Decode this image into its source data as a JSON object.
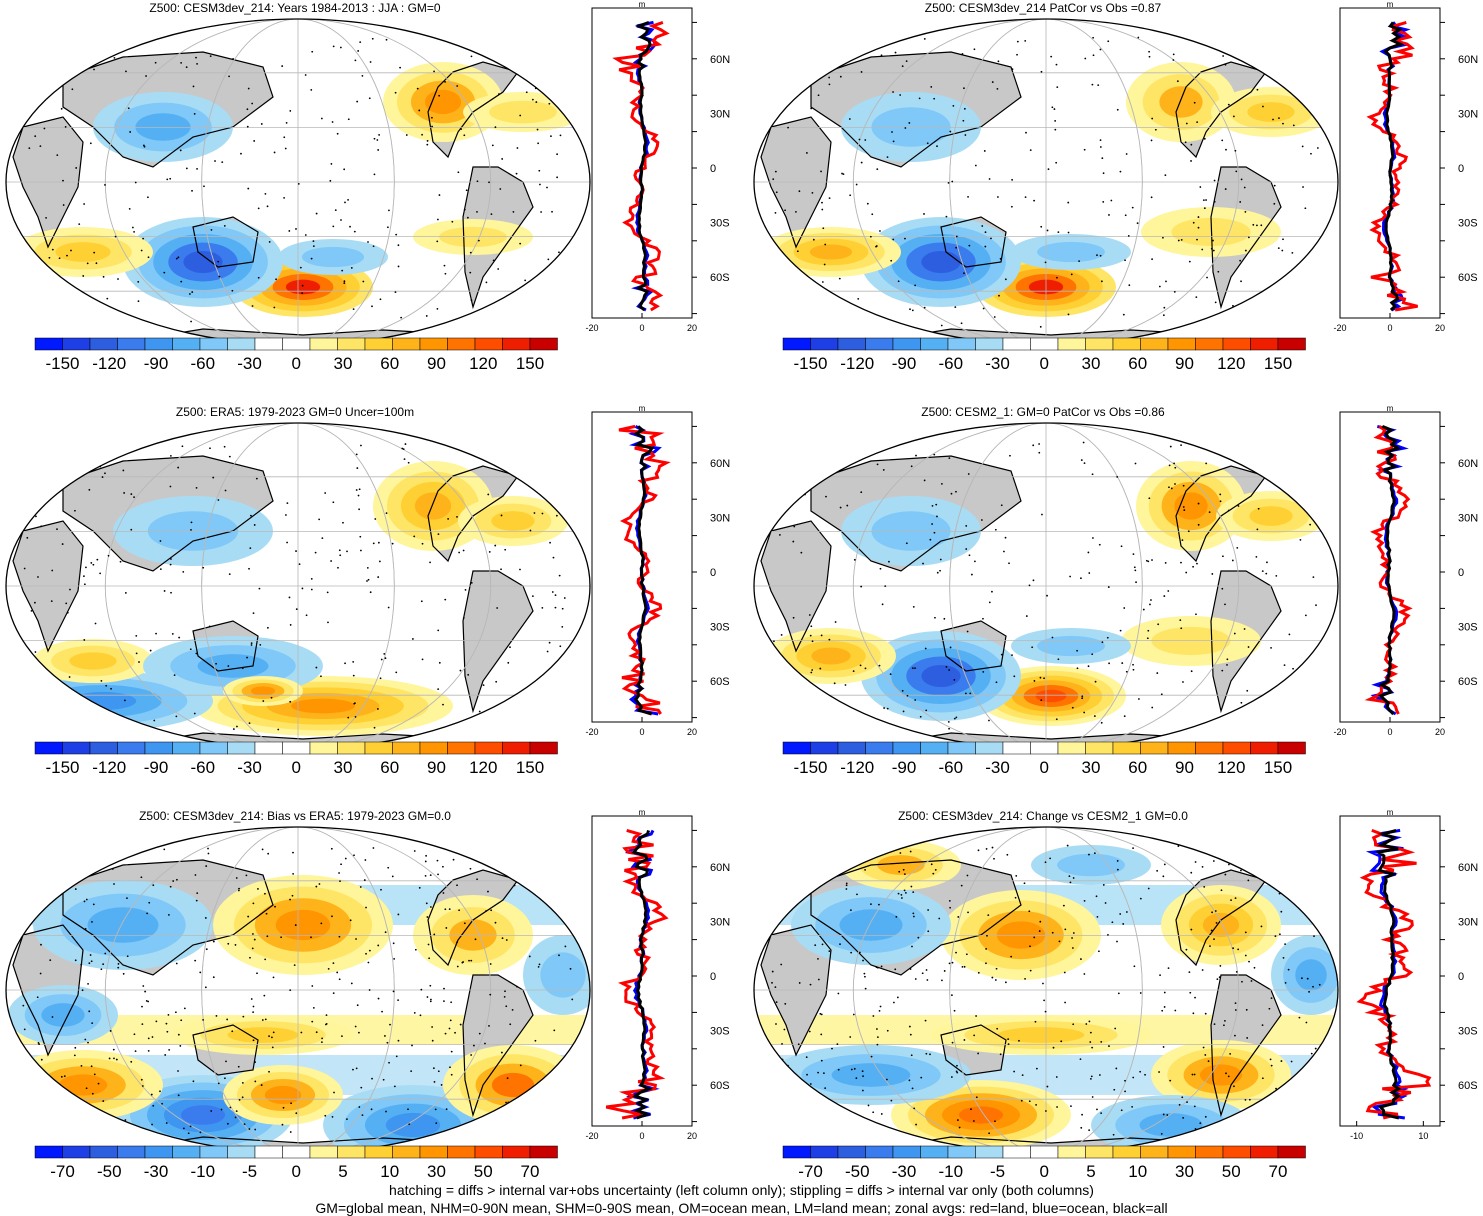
{
  "panels": [
    {
      "title": "Z500: CESM3dev_214: Years 1984-2013 : JJA : GM=0",
      "colorbar_labels": [
        "-150",
        "-120",
        "-90",
        "-60",
        "-30",
        "0",
        "30",
        "60",
        "90",
        "120",
        "150"
      ],
      "profile_ticks": [
        "-20",
        "0",
        "20"
      ],
      "profile_unit": "m",
      "palette": "large"
    },
    {
      "title": "Z500: CESM3dev_214 PatCor vs Obs =0.87",
      "colorbar_labels": [
        "-150",
        "-120",
        "-90",
        "-60",
        "-30",
        "0",
        "30",
        "60",
        "90",
        "120",
        "150"
      ],
      "profile_ticks": [
        "-20",
        "0",
        "20"
      ],
      "profile_unit": "m",
      "palette": "large"
    },
    {
      "title": "Z500: ERA5: 1979-2023 GM=0 Uncer=100m",
      "colorbar_labels": [
        "-150",
        "-120",
        "-90",
        "-60",
        "-30",
        "0",
        "30",
        "60",
        "90",
        "120",
        "150"
      ],
      "profile_ticks": [
        "-20",
        "0",
        "20"
      ],
      "profile_unit": "m",
      "palette": "large"
    },
    {
      "title": "Z500: CESM2_1: GM=0 PatCor vs Obs =0.86",
      "colorbar_labels": [
        "-150",
        "-120",
        "-90",
        "-60",
        "-30",
        "0",
        "30",
        "60",
        "90",
        "120",
        "150"
      ],
      "profile_ticks": [
        "-20",
        "0",
        "20"
      ],
      "profile_unit": "m",
      "palette": "large"
    },
    {
      "title": "Z500: CESM3dev_214: Bias vs ERA5: 1979-2023 GM=0.0",
      "colorbar_labels": [
        "-70",
        "-50",
        "-30",
        "-10",
        "-5",
        "0",
        "5",
        "10",
        "30",
        "50",
        "70"
      ],
      "profile_ticks": [
        "-20",
        "0",
        "20"
      ],
      "profile_unit": "m",
      "palette": "small"
    },
    {
      "title": "Z500: CESM3dev_214: Change vs CESM2_1 GM=0.0",
      "colorbar_labels": [
        "-70",
        "-50",
        "-30",
        "-10",
        "-5",
        "0",
        "5",
        "10",
        "30",
        "50",
        "70"
      ],
      "profile_ticks": [
        "-10",
        "10"
      ],
      "profile_unit": "m",
      "palette": "small"
    }
  ],
  "lat_labels": [
    "60N",
    "30N",
    "0",
    "30S",
    "60S"
  ],
  "footer": {
    "line1": "hatching = diffs > internal var+obs uncertainty (left column only); stippling = diffs > internal var only (both columns)",
    "line2": "GM=global mean, NHM=0-90N mean, SHM=0-90S mean, OM=ocean mean, LM=land mean; zonal avgs: red=land, blue=ocean, black=all"
  },
  "colors": {
    "colorbar": [
      "#0019ff",
      "#1f3fe6",
      "#2e5ee0",
      "#3a7bee",
      "#3f96f0",
      "#55b0f3",
      "#7fc8f8",
      "#a8dcf5",
      "#ffffff",
      "#ffffff",
      "#fff59a",
      "#ffe566",
      "#ffd033",
      "#ffb31a",
      "#ff9500",
      "#ff7300",
      "#ff4d00",
      "#f01e00",
      "#c80000"
    ],
    "land": "#c8c8c8",
    "land_series": "#ff0000",
    "ocean_series": "#0000ff",
    "all_series": "#000000"
  },
  "chart_data": [
    {
      "type": "heatmap",
      "title": "Z500: CESM3dev_214: Years 1984-2013 : JJA : GM=0",
      "colorbar_levels": [
        -150,
        -120,
        -90,
        -60,
        -30,
        0,
        30,
        60,
        90,
        120,
        150
      ],
      "features": [
        {
          "lon": 140,
          "lat": -55,
          "value": 150
        },
        {
          "lon": 90,
          "lat": -50,
          "value": -110
        },
        {
          "lon": -100,
          "lat": 62,
          "value": 60
        },
        {
          "lon": 60,
          "lat": 40,
          "value": -50
        },
        {
          "lon": 30,
          "lat": -38,
          "value": 50
        },
        {
          "lon": -30,
          "lat": 40,
          "value": 30
        }
      ],
      "zonal_profile": {
        "xlim": [
          -20,
          20
        ],
        "unit": "m"
      }
    },
    {
      "type": "heatmap",
      "title": "Z500: CESM3dev_214 PatCor vs Obs =0.87",
      "colorbar_levels": [
        -150,
        -120,
        -90,
        -60,
        -30,
        0,
        30,
        60,
        90,
        120,
        150
      ],
      "pattern_correlation": 0.87,
      "features": [
        {
          "lon": 140,
          "lat": -55,
          "value": 140
        },
        {
          "lon": 90,
          "lat": -50,
          "value": -100
        },
        {
          "lon": -100,
          "lat": 62,
          "value": 50
        },
        {
          "lon": 20,
          "lat": -38,
          "value": 60
        }
      ],
      "zonal_profile": {
        "xlim": [
          -20,
          20
        ],
        "unit": "m"
      }
    },
    {
      "type": "heatmap",
      "title": "Z500: ERA5: 1979-2023 GM=0 Uncer=100m",
      "colorbar_levels": [
        -150,
        -120,
        -90,
        -60,
        -30,
        0,
        30,
        60,
        90,
        120,
        150
      ],
      "uncertainty_m": 100,
      "features": [
        {
          "lon": -150,
          "lat": -50,
          "value": 60
        },
        {
          "lon": 60,
          "lat": -50,
          "value": -90
        },
        {
          "lon": -100,
          "lat": 55,
          "value": 50
        },
        {
          "lon": 50,
          "lat": -30,
          "value": 50
        }
      ],
      "zonal_profile": {
        "xlim": [
          -20,
          20
        ],
        "unit": "m"
      }
    },
    {
      "type": "heatmap",
      "title": "Z500: CESM2_1: GM=0 PatCor vs Obs =0.86",
      "colorbar_levels": [
        -150,
        -120,
        -90,
        -60,
        -30,
        0,
        30,
        60,
        90,
        120,
        150
      ],
      "pattern_correlation": 0.86,
      "features": [
        {
          "lon": 140,
          "lat": -55,
          "value": 120
        },
        {
          "lon": 90,
          "lat": -55,
          "value": -120
        },
        {
          "lon": -100,
          "lat": 60,
          "value": 70
        },
        {
          "lon": 20,
          "lat": -38,
          "value": 50
        }
      ],
      "zonal_profile": {
        "xlim": [
          -20,
          20
        ],
        "unit": "m"
      }
    },
    {
      "type": "heatmap",
      "title": "Z500: CESM3dev_214: Bias vs ERA5: 1979-2023 GM=0.0",
      "colorbar_levels": [
        -70,
        -50,
        -30,
        -10,
        -5,
        0,
        5,
        10,
        30,
        50,
        70
      ],
      "features": [
        {
          "lon": 100,
          "lat": -50,
          "value": -60
        },
        {
          "lon": -150,
          "lat": -50,
          "value": -60
        },
        {
          "lon": 30,
          "lat": -45,
          "value": 40
        },
        {
          "lon": 150,
          "lat": 45,
          "value": 40
        },
        {
          "lon": -60,
          "lat": -45,
          "value": 50
        }
      ],
      "zonal_profile": {
        "xlim": [
          -20,
          20
        ],
        "unit": "m"
      }
    },
    {
      "type": "heatmap",
      "title": "Z500: CESM3dev_214: Change vs CESM2_1 GM=0.0",
      "colorbar_levels": [
        -70,
        -50,
        -30,
        -10,
        -5,
        0,
        5,
        10,
        30,
        50,
        70
      ],
      "features": [
        {
          "lon": 160,
          "lat": -55,
          "value": 40
        },
        {
          "lon": -60,
          "lat": -40,
          "value": 40
        },
        {
          "lon": 60,
          "lat": 50,
          "value": -40
        },
        {
          "lon": 150,
          "lat": 50,
          "value": 40
        }
      ],
      "zonal_profile": {
        "xlim": [
          -15,
          15
        ],
        "unit": "m"
      }
    }
  ]
}
